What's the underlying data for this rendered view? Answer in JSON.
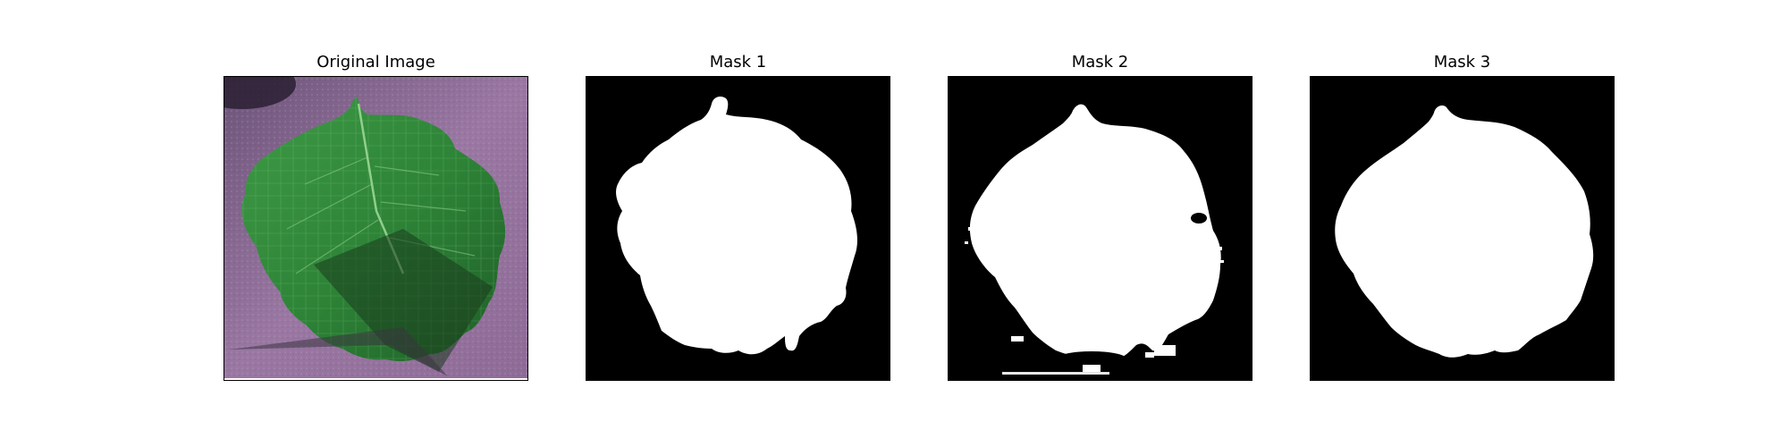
{
  "panels": [
    {
      "title": "Original Image",
      "kind": "photo"
    },
    {
      "title": "Mask 1",
      "kind": "mask"
    },
    {
      "title": "Mask 2",
      "kind": "mask"
    },
    {
      "title": "Mask 3",
      "kind": "mask"
    }
  ],
  "colors": {
    "background_purple": "#8d6a94",
    "leaf_green": "#2f8a3a",
    "leaf_dark": "#1f5a27",
    "mask_foreground": "#ffffff",
    "mask_background": "#000000"
  }
}
